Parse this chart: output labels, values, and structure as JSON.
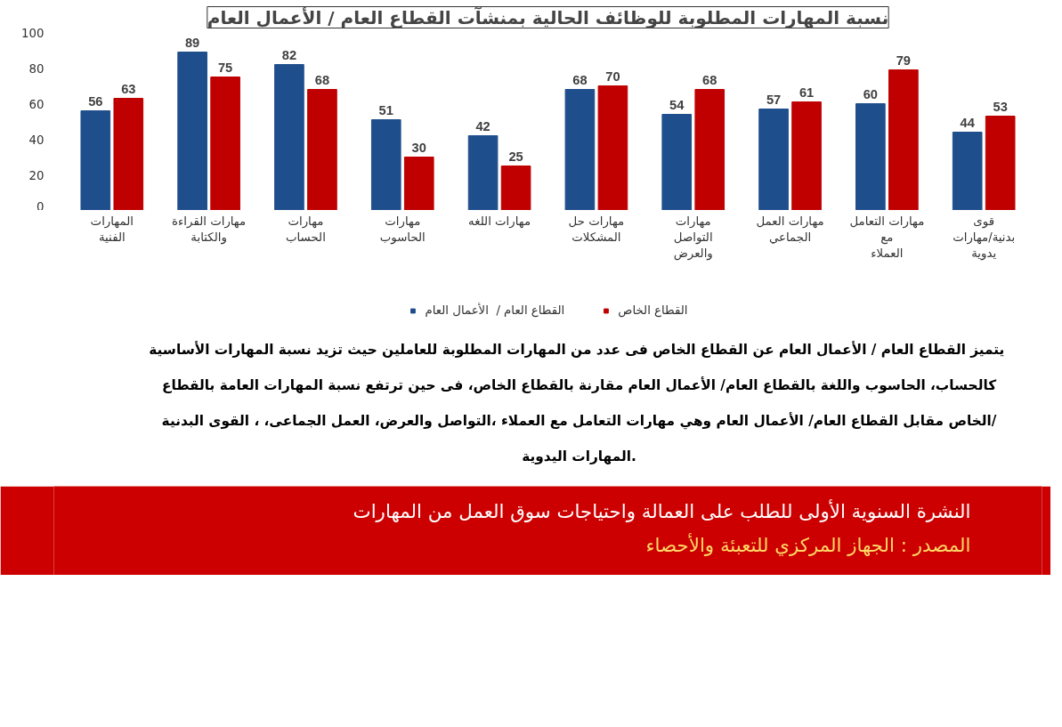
{
  "chart_data": {
    "type": "bar",
    "title": "نسبة المهارات المطلوبة للوظائف الحالية بمنشآت القطاع العام / الأعمال العام",
    "categories": [
      "المهارات\nالفنية",
      "مهارات القراءة\nوالكتابة",
      "مهارات\nالحساب",
      "مهارات\nالحاسوب",
      "مهارات اللغه",
      "مهارات حل\nالمشكلات",
      "مهارات\nالتواصل\nوالعرض",
      "مهارات العمل\nالجماعي",
      "مهارات التعامل\nمع\nالعملاء",
      "قوى\nبدنية/مهارات\nيدوية"
    ],
    "series": [
      {
        "name": "القطاع العام /  الأعمال العام",
        "color": "#1f4e8c",
        "values": [
          56,
          89,
          82,
          51,
          42,
          68,
          54,
          57,
          60,
          44
        ]
      },
      {
        "name": "القطاع الخاص",
        "color": "#c00000",
        "values": [
          63,
          75,
          68,
          30,
          25,
          70,
          68,
          61,
          79,
          53
        ]
      }
    ],
    "ylim": [
      0,
      100
    ],
    "yticks": [
      0,
      20,
      40,
      60,
      80,
      100
    ],
    "data_labels": true,
    "grid": false,
    "legend": "bottom",
    "annotations": [
      "يتميز  القطاع العام / الأعمال العام عن القطاع الخاص فى عدد من المهارات المطلوبة للعاملين حيث تزيد نسبة المهارات الأساسية",
      "كالحساب، الحاسوب واللغة بالقطاع العام/ الأعمال العام مقارنة بالقطاع الخاص، فى حين ترتفع نسبة المهارات العامة بالقطاع",
      "الخاص مقابل القطاع العام/ الأعمال العام وهي مهارات التعامل مع العملاء ،التواصل والعرض، العمل الجماعى، ، القوى البدنية/",
      "المهارات اليدوية.",
      "النشرة السنوية الأولى للطلب على العمالة واحتياجات سوق العمل من المهارات",
      "المصدر : الجهاز المركزي للتعبئة والأحصاء"
    ]
  }
}
